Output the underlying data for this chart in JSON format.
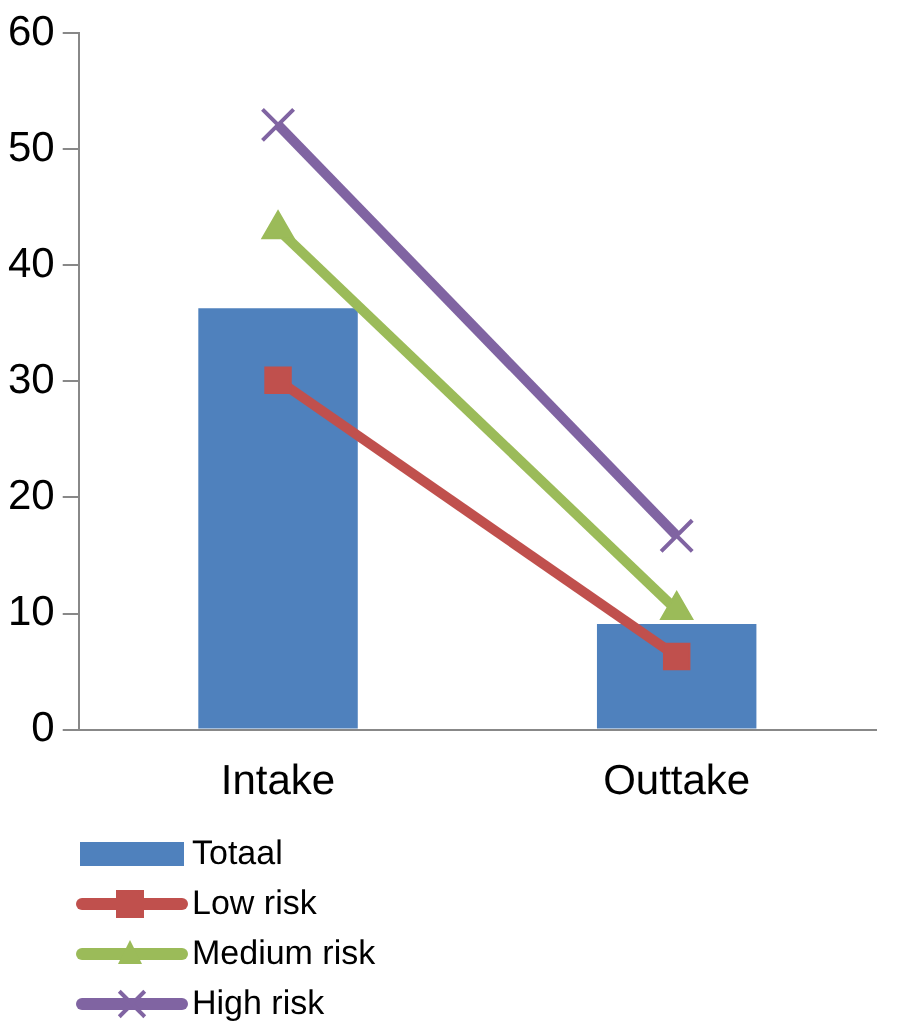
{
  "chart_data": {
    "type": "bar",
    "categories": [
      "Intake",
      "Outtake"
    ],
    "series": [
      {
        "name": "Totaal",
        "color": "#4f81bd",
        "values": [
          36.3,
          9.1
        ]
      },
      {
        "name": "Low risk",
        "type": "line",
        "color": "#c0504d",
        "marker": "square",
        "values": [
          30.1,
          6.3
        ]
      },
      {
        "name": "Medium risk",
        "type": "line",
        "color": "#9bbb59",
        "marker": "triangle",
        "values": [
          43.1,
          10.3
        ]
      },
      {
        "name": "High risk",
        "type": "line",
        "color": "#8064a2",
        "marker": "cross",
        "values": [
          52.1,
          16.7
        ]
      }
    ],
    "ylim": [
      0,
      60
    ],
    "yticks": [
      0,
      10,
      20,
      30,
      40,
      50,
      60
    ],
    "grid": false,
    "legend": "bottom"
  }
}
